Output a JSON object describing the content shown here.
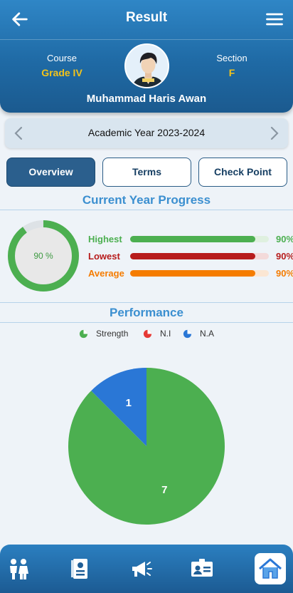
{
  "header": {
    "title": "Result",
    "course_label": "Course",
    "course_value": "Grade IV",
    "section_label": "Section",
    "section_value": "F",
    "student_name": "Muhammad Haris Awan"
  },
  "year_selector": {
    "text": "Academic Year 2023-2024"
  },
  "tabs": [
    {
      "label": "Overview",
      "active": true
    },
    {
      "label": "Terms",
      "active": false
    },
    {
      "label": "Check Point",
      "active": false
    }
  ],
  "progress": {
    "title": "Current Year Progress",
    "donut_value": 90,
    "donut_label": "90 %",
    "bars": [
      {
        "label": "Highest",
        "value": 90,
        "pct_text": "90%",
        "color": "#4caf50",
        "track": "#dff0df"
      },
      {
        "label": "Lowest",
        "value": 90,
        "pct_text": "90%",
        "color": "#b71c1c",
        "track": "#f3dada"
      },
      {
        "label": "Average",
        "value": 90,
        "pct_text": "90%",
        "color": "#f57c00",
        "track": "#fbe6d3"
      }
    ]
  },
  "performance": {
    "title": "Performance",
    "legend": [
      {
        "label": "Strength",
        "color": "#4caf50"
      },
      {
        "label": "N.I",
        "color": "#e53935"
      },
      {
        "label": "N.A",
        "color": "#2a77d6"
      }
    ]
  },
  "chart_data": {
    "type": "pie",
    "categories": [
      "Strength",
      "N.I",
      "N.A"
    ],
    "values": [
      7,
      0,
      1
    ],
    "colors": [
      "#4caf50",
      "#e53935",
      "#2a77d6"
    ],
    "legend_position": "top"
  },
  "bottom_nav": {
    "icons": [
      "children-icon",
      "report-card-icon",
      "announcement-icon",
      "id-card-icon",
      "home-icon"
    ]
  }
}
